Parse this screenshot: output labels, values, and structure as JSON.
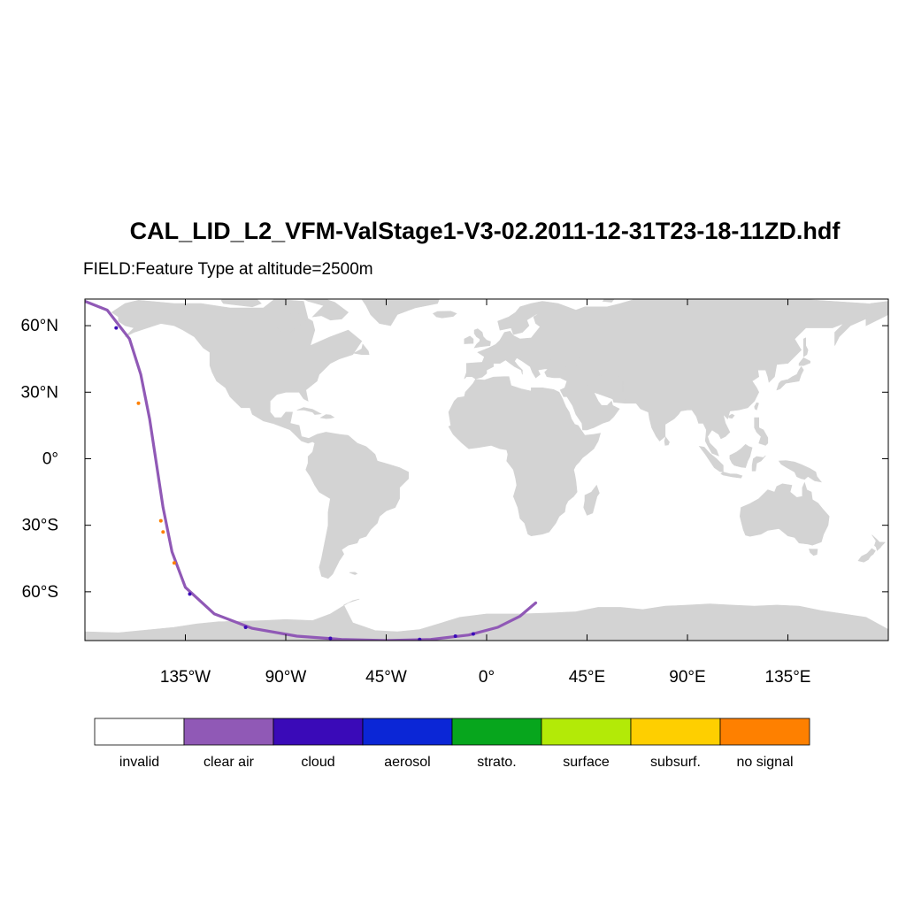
{
  "header": {
    "title": "CAL_LID_L2_VFM-ValStage1-V3-02.2011-12-31T23-18-11ZD.hdf",
    "subtitle": "FIELD:Feature Type at altitude=2500m"
  },
  "map": {
    "projection": "cylindrical-equidistant",
    "lon_range": [
      -180,
      180
    ],
    "lat_range": [
      -82,
      72
    ],
    "land_color": "#d3d3d3",
    "ocean_color": "#ffffff",
    "lat_ticks": [
      {
        "value": 60,
        "label": "60°N"
      },
      {
        "value": 30,
        "label": "30°N"
      },
      {
        "value": 0,
        "label": "0°"
      },
      {
        "value": -30,
        "label": "30°S"
      },
      {
        "value": -60,
        "label": "60°S"
      }
    ],
    "lon_ticks": [
      {
        "value": -135,
        "label": "135°W"
      },
      {
        "value": -90,
        "label": "90°W"
      },
      {
        "value": -45,
        "label": "45°W"
      },
      {
        "value": 0,
        "label": "0°"
      },
      {
        "value": 45,
        "label": "45°E"
      },
      {
        "value": 90,
        "label": "90°E"
      },
      {
        "value": 135,
        "label": "135°E"
      }
    ]
  },
  "chart_data": {
    "type": "scatter",
    "field": "Feature Type",
    "altitude": "2500m",
    "track": [
      [
        -180,
        71
      ],
      [
        -170,
        67
      ],
      [
        -160,
        54
      ],
      [
        -155,
        38
      ],
      [
        -151,
        18
      ],
      [
        -148,
        -2
      ],
      [
        -145,
        -22
      ],
      [
        -141,
        -42
      ],
      [
        -135,
        -58
      ],
      [
        -122,
        -70
      ],
      [
        -105,
        -76.5
      ],
      [
        -85,
        -80
      ],
      [
        -65,
        -81.5
      ],
      [
        -45,
        -82
      ],
      [
        -25,
        -81.5
      ],
      [
        -8,
        -79.5
      ],
      [
        5,
        -76
      ],
      [
        15,
        -71
      ],
      [
        22,
        -65
      ]
    ],
    "highlights": [
      {
        "class": "no signal",
        "lon": -145,
        "lat": -33
      },
      {
        "class": "no signal",
        "lon": -146,
        "lat": -28
      },
      {
        "class": "no signal",
        "lon": -140,
        "lat": -47
      },
      {
        "class": "no signal",
        "lon": -156,
        "lat": 25
      },
      {
        "class": "cloud",
        "lon": -166,
        "lat": 59
      },
      {
        "class": "cloud",
        "lon": -133,
        "lat": -61
      },
      {
        "class": "cloud",
        "lon": -108,
        "lat": -76
      },
      {
        "class": "cloud",
        "lon": -70,
        "lat": -81
      },
      {
        "class": "cloud",
        "lon": -30,
        "lat": -81.5
      },
      {
        "class": "cloud",
        "lon": -14,
        "lat": -80
      },
      {
        "class": "cloud",
        "lon": -6,
        "lat": -79
      }
    ],
    "legend": [
      {
        "label": "invalid",
        "color": "#ffffff"
      },
      {
        "label": "clear air",
        "color": "#9059b6"
      },
      {
        "label": "cloud",
        "color": "#3a0ab8"
      },
      {
        "label": "aerosol",
        "color": "#0b26d6"
      },
      {
        "label": "strato.",
        "color": "#07a61d"
      },
      {
        "label": "surface",
        "color": "#b3ea07"
      },
      {
        "label": "subsurf.",
        "color": "#fecf00"
      },
      {
        "label": "no signal",
        "color": "#fe8000"
      }
    ]
  }
}
